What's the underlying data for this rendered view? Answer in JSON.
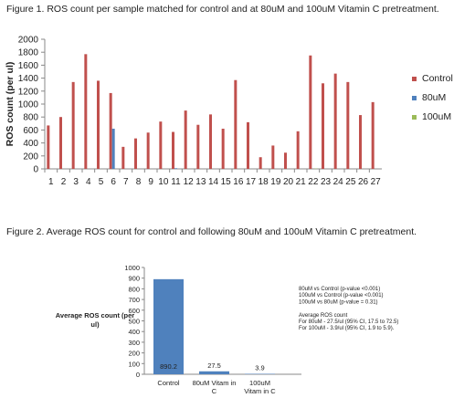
{
  "figures": {
    "fig1_caption": "Figure 1. ROS count per sample matched for control and at 80uM and 100uM Vitamin C pretreatment.",
    "fig2_caption": "Figure 2. Average ROS count for control and following 80uM and 100uM Vitamin C pretreatment."
  },
  "chart_data": [
    {
      "type": "bar",
      "ylabel": "ROS count (per ul)",
      "xlabel": "",
      "ylim": [
        0,
        2000
      ],
      "yticks": [
        0,
        200,
        400,
        600,
        800,
        1000,
        1200,
        1400,
        1600,
        1800,
        2000
      ],
      "legend_position": "right",
      "grid": false,
      "categories": [
        "1",
        "2",
        "3",
        "4",
        "5",
        "6",
        "7",
        "8",
        "9",
        "10",
        "11",
        "12",
        "13",
        "14",
        "15",
        "16",
        "17",
        "18",
        "19",
        "20",
        "21",
        "22",
        "23",
        "24",
        "25",
        "26",
        "27"
      ],
      "series": [
        {
          "name": "Control",
          "color": "#c0504d",
          "values": [
            670,
            800,
            1340,
            1770,
            1360,
            1170,
            340,
            470,
            560,
            730,
            570,
            900,
            680,
            840,
            620,
            1370,
            720,
            180,
            360,
            250,
            580,
            1750,
            1320,
            1470,
            1340,
            830,
            1030
          ]
        },
        {
          "name": "80uM",
          "color": "#4f81bd",
          "values": [
            0,
            0,
            0,
            0,
            0,
            620,
            0,
            0,
            0,
            0,
            10,
            0,
            0,
            0,
            0,
            0,
            0,
            0,
            0,
            0,
            0,
            0,
            0,
            0,
            0,
            0,
            0
          ]
        },
        {
          "name": "100uM",
          "color": "#9bbb59",
          "values": [
            0,
            0,
            0,
            0,
            0,
            0,
            0,
            0,
            0,
            0,
            0,
            0,
            0,
            0,
            0,
            0,
            0,
            0,
            0,
            0,
            0,
            5,
            0,
            0,
            0,
            0,
            0
          ]
        }
      ]
    },
    {
      "type": "bar",
      "ylabel": "Average ROS count (per ul)",
      "xlabel": "",
      "ylim": [
        0,
        1000
      ],
      "yticks": [
        0,
        100,
        200,
        300,
        400,
        500,
        600,
        700,
        800,
        900,
        1000
      ],
      "grid": false,
      "color": "#4f81bd",
      "categories": [
        "Control",
        "80uM Vitamin C",
        "100uM Vitamin C"
      ],
      "values": [
        890.2,
        27.5,
        3.9
      ],
      "data_labels": [
        "890.2",
        "27.5",
        "3.9"
      ],
      "annotations": [
        "80uM vs Control (p-value <0.001)",
        "100uM vs Control (p-value <0.001)",
        "100uM vs 80uM (p-value = 0.31)",
        "",
        "Average ROS count",
        "For 80uM - 27.5/ul (95% CI, 17.5 to 72.5)",
        "For 100uM - 3.9/ul (95% CI, 1.9 to 5.9)."
      ]
    }
  ]
}
